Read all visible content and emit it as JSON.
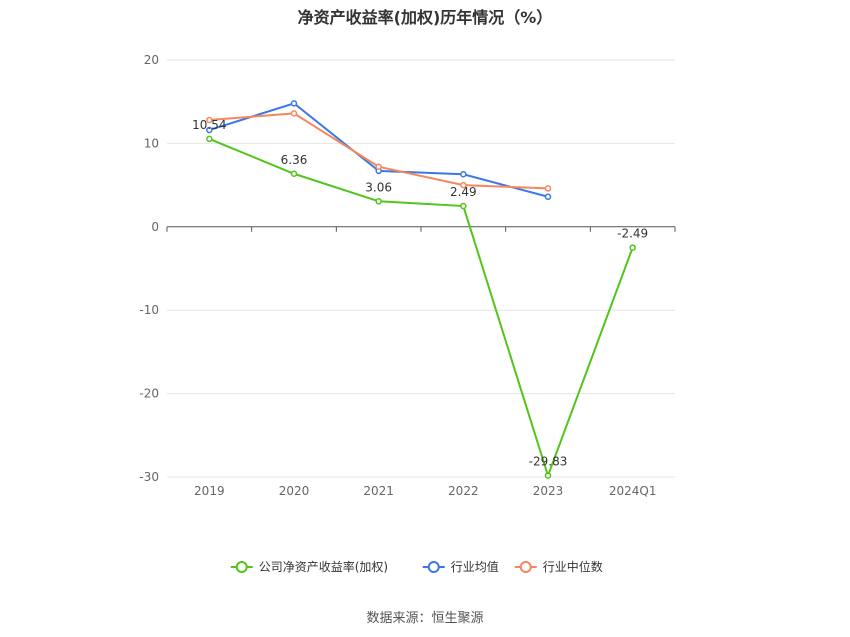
{
  "chart_data": {
    "type": "line",
    "title": "净资产收益率(加权)历年情况（%）",
    "categories": [
      "2019",
      "2020",
      "2021",
      "2022",
      "2023",
      "2024Q1"
    ],
    "ylim": [
      -30,
      20
    ],
    "yticks": [
      20,
      10,
      0,
      -10,
      -20,
      -30
    ],
    "grid": true,
    "legend_position": "bottom",
    "series": [
      {
        "name": "公司净资产收益率(加权)",
        "color": "#52c41a",
        "values": [
          10.54,
          6.36,
          3.06,
          2.49,
          -29.83,
          -2.49
        ],
        "labels": [
          "10.54",
          "6.36",
          "3.06",
          "2.49",
          "-29.83",
          "-2.49"
        ]
      },
      {
        "name": "行业均值",
        "color": "#3b78e7",
        "values": [
          11.6,
          14.8,
          6.7,
          6.3,
          3.6,
          null
        ]
      },
      {
        "name": "行业中位数",
        "color": "#f4875e",
        "values": [
          12.8,
          13.6,
          7.2,
          5.0,
          4.6,
          null
        ]
      }
    ]
  },
  "source": "数据来源：恒生聚源"
}
